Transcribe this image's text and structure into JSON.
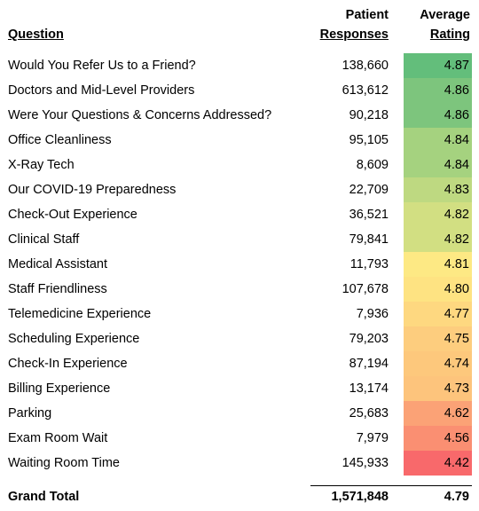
{
  "header": {
    "columns": [
      [
        "Question"
      ],
      [
        "Patient",
        "Responses"
      ],
      [
        "Average",
        "Rating"
      ]
    ]
  },
  "table": {
    "rows": [
      [
        "Would You Refer Us to a Friend?",
        "138,660",
        "4.87"
      ],
      [
        "Doctors and Mid-Level Providers",
        "613,612",
        "4.86"
      ],
      [
        "Were Your Questions & Concerns Addressed?",
        "90,218",
        "4.86"
      ],
      [
        "Office Cleanliness",
        "95,105",
        "4.84"
      ],
      [
        "X-Ray Tech",
        "8,609",
        "4.84"
      ],
      [
        "Our COVID-19 Preparedness",
        "22,709",
        "4.83"
      ],
      [
        "Check-Out Experience",
        "36,521",
        "4.82"
      ],
      [
        "Clinical Staff",
        "79,841",
        "4.82"
      ],
      [
        "Medical Assistant",
        "11,793",
        "4.81"
      ],
      [
        "Staff Friendliness",
        "107,678",
        "4.80"
      ],
      [
        "Telemedicine Experience",
        "7,936",
        "4.77"
      ],
      [
        "Scheduling Experience",
        "79,203",
        "4.75"
      ],
      [
        "Check-In Experience",
        "87,194",
        "4.74"
      ],
      [
        "Billing Experience",
        "13,174",
        "4.73"
      ],
      [
        "Parking",
        "25,683",
        "4.62"
      ],
      [
        "Exam Room Wait",
        "7,979",
        "4.56"
      ],
      [
        "Waiting Room Time",
        "145,933",
        "4.42"
      ]
    ],
    "colors": [
      "#63be7b",
      "#7dc57d",
      "#7dc57d",
      "#a5d27f",
      "#a5d27f",
      "#bed981",
      "#d2df82",
      "#d2df82",
      "#fde984",
      "#fee382",
      "#fed880",
      "#fdcd7e",
      "#fdc87c",
      "#fdc47c",
      "#fba276",
      "#fa8f72",
      "#f8696b"
    ],
    "total": [
      "Grand Total",
      "1,571,848",
      "4.79"
    ]
  }
}
